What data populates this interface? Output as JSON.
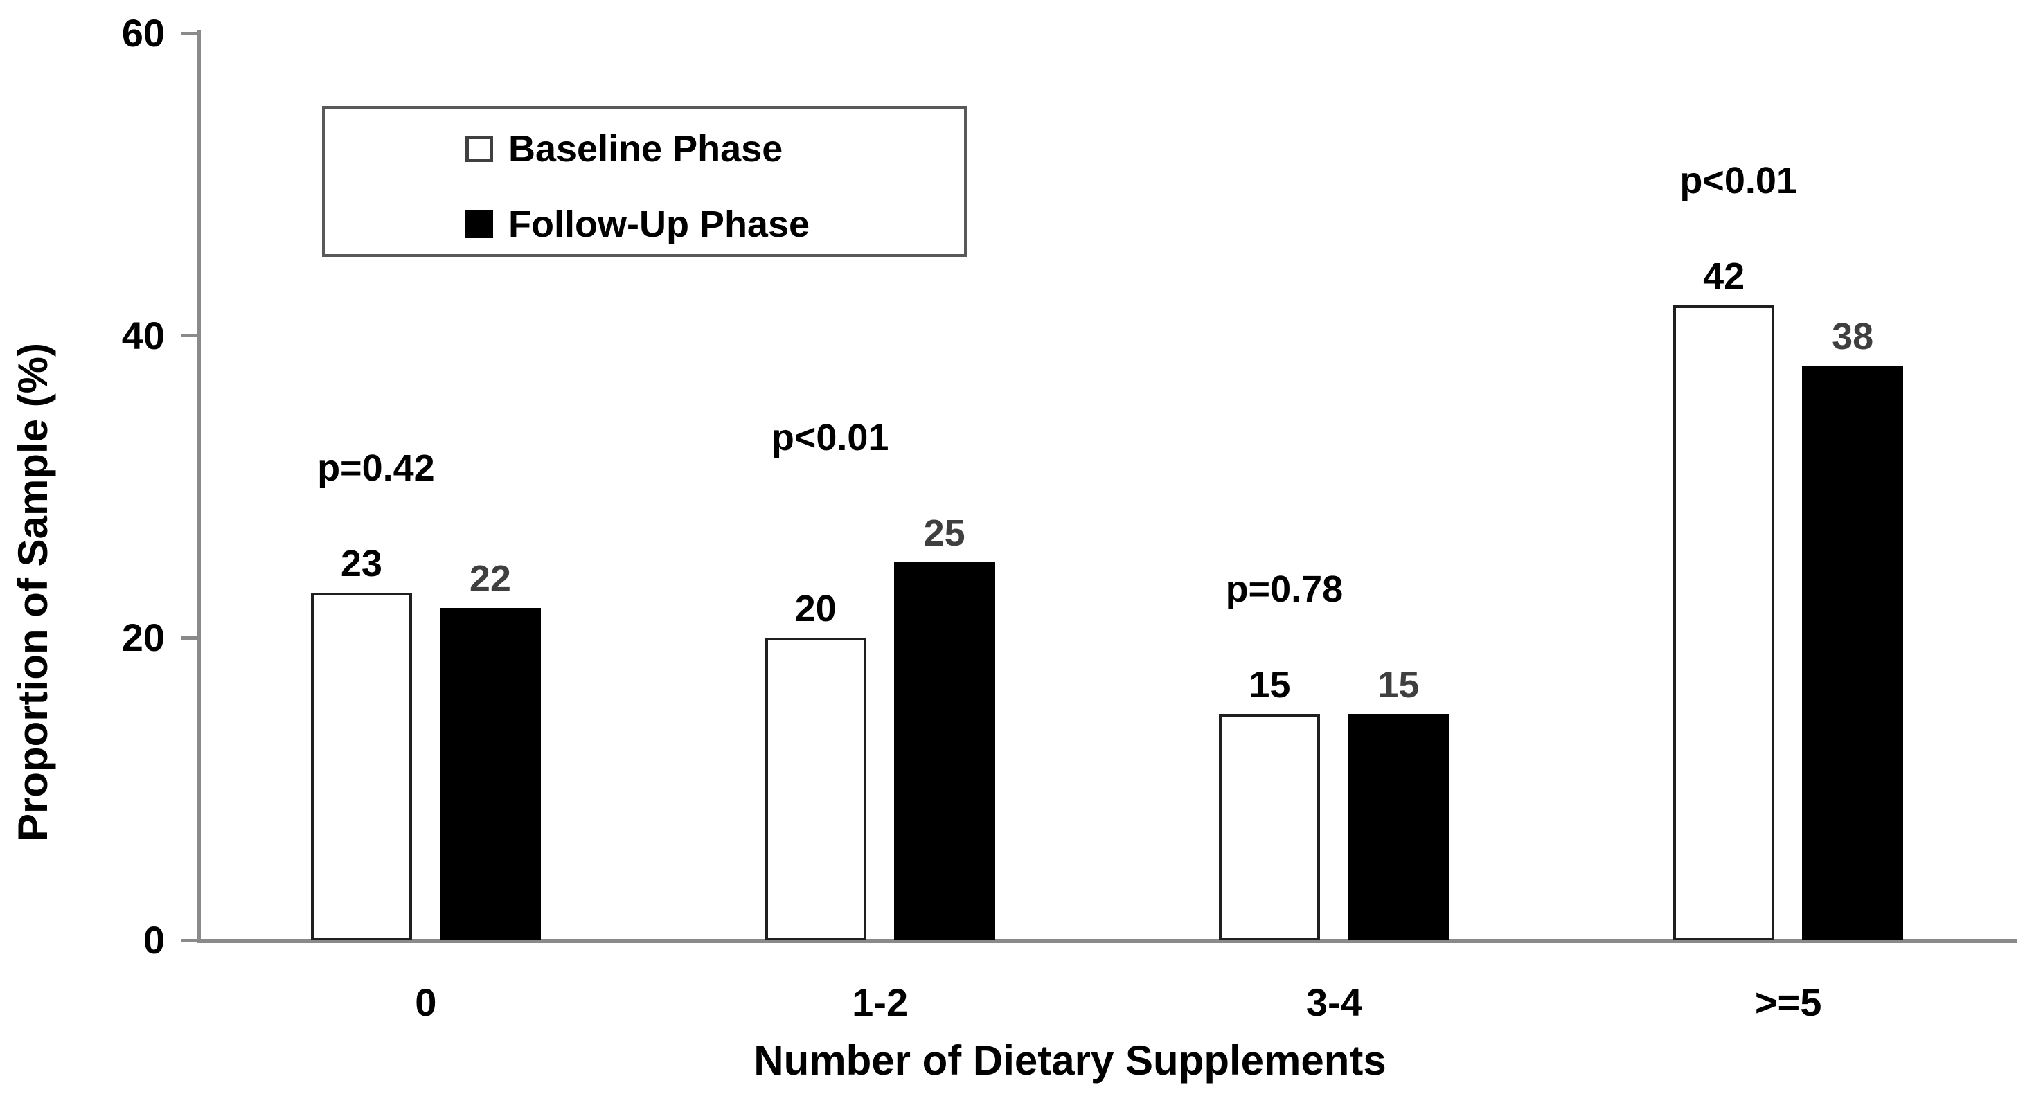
{
  "chart_data": {
    "type": "bar",
    "title": "",
    "categories": [
      "0",
      "1-2",
      "3-4",
      ">=5"
    ],
    "series": [
      {
        "name": "Baseline Phase",
        "values": [
          23,
          20,
          15,
          42
        ],
        "fill": "#ffffff",
        "border": "#1f1f1f",
        "label_color": "#000000"
      },
      {
        "name": "Follow-Up Phase",
        "values": [
          22,
          25,
          15,
          38
        ],
        "fill": "#000000",
        "border": "#000000",
        "label_color": "#3f3f3f"
      }
    ],
    "p_values": [
      "p=0.42",
      "p<0.01",
      "p=0.78",
      "p<0.01"
    ],
    "xlabel": "Number of Dietary Supplements",
    "ylabel": "Proportion of Sample (%)",
    "ylim": [
      0,
      60
    ],
    "yticks": [
      "0",
      "20",
      "40",
      "60"
    ],
    "grid": false,
    "legend_position": "inside-top-left",
    "colors": {
      "axis": "#8a8a8a",
      "text": "#000000",
      "followup_value_label": "#3f3f3f",
      "legend_border": "#595959",
      "background": "#ffffff"
    }
  }
}
